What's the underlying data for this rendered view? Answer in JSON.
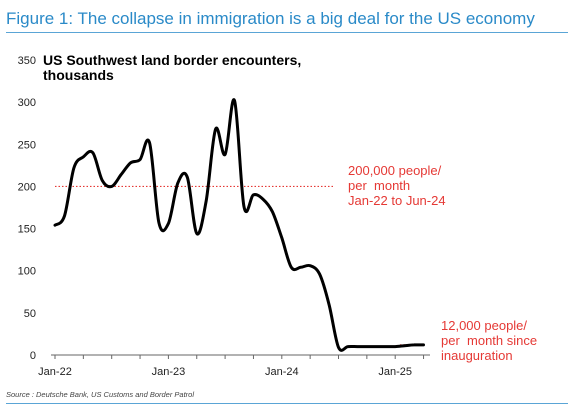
{
  "figure": {
    "title": "Figure 1: The collapse in immigration is a big deal for the US economy",
    "source": "Source : Deutsche Bank, US Customs and Border Patrol"
  },
  "chart_data": {
    "type": "line",
    "title_lines": [
      "US Southwest land border encounters,",
      "thousands"
    ],
    "ylim": [
      0,
      350
    ],
    "yticks": [
      0,
      50,
      100,
      150,
      200,
      250,
      300,
      350
    ],
    "x_ticks": [
      "Jan-22",
      "Jan-23",
      "Jan-24",
      "Jan-25"
    ],
    "x_tick_months": [
      0,
      12,
      24,
      36
    ],
    "xlim_months": [
      0,
      40
    ],
    "grid": false,
    "series": [
      {
        "months": [
          0,
          1,
          2,
          3,
          4,
          5,
          6,
          7,
          8,
          9,
          10,
          11,
          12,
          13,
          14,
          15,
          16,
          17,
          18,
          19,
          20,
          21,
          22,
          23,
          24,
          25,
          26,
          27,
          28,
          29,
          30,
          31,
          32,
          33,
          34,
          35,
          36,
          37,
          38,
          39
        ],
        "values": [
          154,
          165,
          222,
          235,
          240,
          207,
          200,
          214,
          228,
          232,
          252,
          157,
          156,
          204,
          211,
          144,
          183,
          268,
          238,
          302,
          176,
          190,
          185,
          170,
          139,
          104,
          104,
          106,
          96,
          60,
          9,
          10,
          10,
          10,
          10,
          10,
          10,
          11,
          12,
          12
        ],
        "color": "#000000"
      }
    ],
    "reference_lines": [
      {
        "value": 200,
        "from_month": 0,
        "to_month": 29.5,
        "color": "#e53935",
        "label": [
          "200,000 people/",
          "per  month",
          "Jan-22 to Jun-24"
        ]
      },
      {
        "value": 12,
        "from_month": 36.5,
        "to_month": 38.5,
        "color": "#e53935",
        "label": [
          "12,000 people/",
          "per  month since",
          "inauguration"
        ]
      }
    ]
  }
}
